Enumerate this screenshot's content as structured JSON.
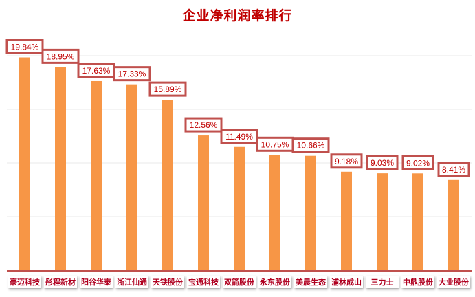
{
  "chart_data": {
    "type": "bar",
    "title": "企业净利润率排行",
    "categories": [
      "豪迈科技",
      "彤程新材",
      "阳谷华泰",
      "浙江仙通",
      "天铁股份",
      "宝通科技",
      "双箭股份",
      "永东股份",
      "美晨生态",
      "浦林成山",
      "三力士",
      "中鼎股份",
      "大业股份"
    ],
    "values": [
      19.84,
      18.95,
      17.63,
      17.33,
      15.89,
      12.56,
      11.49,
      10.75,
      10.66,
      9.18,
      9.03,
      9.02,
      8.41
    ],
    "data_labels": [
      "19.84%",
      "18.95%",
      "17.63%",
      "17.33%",
      "15.89%",
      "12.56%",
      "11.49%",
      "10.75%",
      "10.66%",
      "9.18%",
      "9.03%",
      "9.02%",
      "8.41%"
    ],
    "ylim": [
      0,
      25
    ],
    "gridlines": [
      5,
      10,
      15,
      20
    ],
    "grid": true,
    "xlabel": "",
    "ylabel": "",
    "colors": {
      "bar": "#f79646",
      "label_border": "#c0504d",
      "label_text": "#c00000",
      "axis": "#c0504d"
    }
  }
}
